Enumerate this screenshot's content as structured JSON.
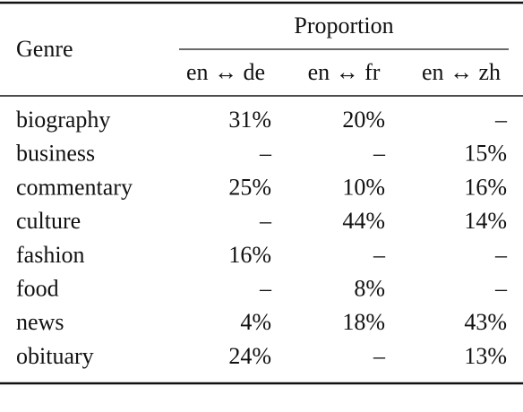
{
  "table": {
    "header": {
      "genre": "Genre",
      "group": "Proportion",
      "columns": [
        "en ↔ de",
        "en ↔ fr",
        "en ↔ zh"
      ]
    },
    "rows": [
      [
        "biography",
        "31%",
        "20%",
        "–"
      ],
      [
        "business",
        "–",
        "–",
        "15%"
      ],
      [
        "commentary",
        "25%",
        "10%",
        "16%"
      ],
      [
        "culture",
        "–",
        "44%",
        "14%"
      ],
      [
        "fashion",
        "16%",
        "–",
        "–"
      ],
      [
        "food",
        "–",
        "8%",
        "–"
      ],
      [
        "news",
        "4%",
        "18%",
        "43%"
      ],
      [
        "obituary",
        "24%",
        "–",
        "13%"
      ]
    ]
  }
}
